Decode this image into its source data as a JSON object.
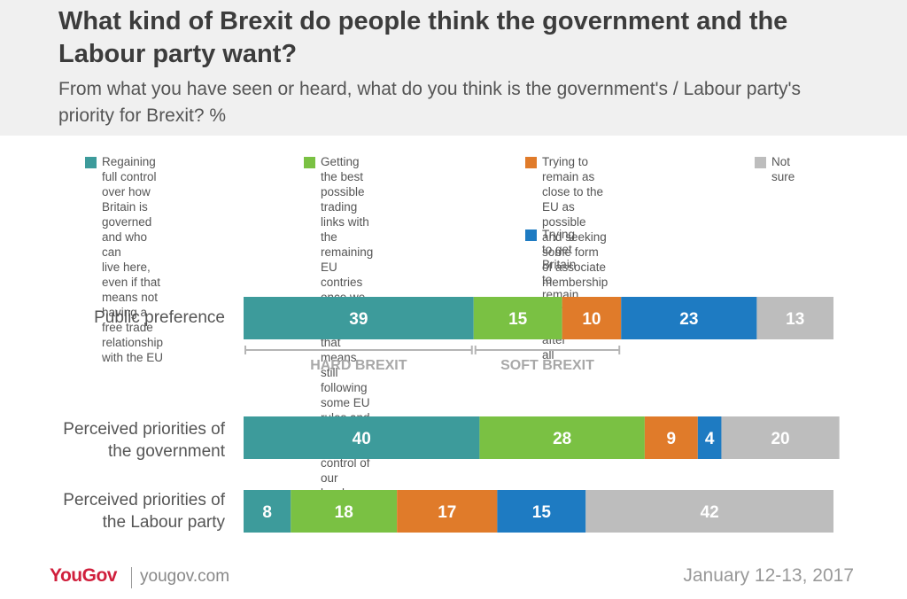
{
  "header": {
    "title": "What kind of Brexit do people think the government and the Labour party want?",
    "subtitle": "From what you have seen or heard, what do you think is the government's / Labour party's priority for Brexit? %"
  },
  "chart_data": {
    "type": "bar",
    "stacked": true,
    "orientation": "horizontal",
    "categories": [
      "Public preference",
      "Perceived priorities of\nthe government",
      "Perceived priorities of\nthe Labour party"
    ],
    "series": [
      {
        "name": "Regaining full control over how Britain is governed and who can live here, even if that means not having a free trade relationship with the EU",
        "color": "#3d9b9b",
        "values": [
          39,
          40,
          8
        ]
      },
      {
        "name": "Getting the best possible trading links with the remaining EU contries once we leave, even if that means still following some EU rules and giving up some control of our borders",
        "color": "#7ac143",
        "values": [
          15,
          28,
          18
        ]
      },
      {
        "name": "Trying to remain as close to the EU as possible and seeking some form of associate membership",
        "color": "#e07b2a",
        "values": [
          10,
          9,
          17
        ]
      },
      {
        "name": "Trying to get Britain to remain in the EU after all",
        "color": "#1e7bc2",
        "values": [
          23,
          4,
          15
        ]
      },
      {
        "name": "Not sure",
        "color": "#bdbdbd",
        "values": [
          13,
          20,
          42
        ]
      }
    ],
    "brackets": [
      {
        "label": "HARD BREXIT",
        "row": 0,
        "from_series": 0,
        "to_series": 0
      },
      {
        "label": "SOFT BREXIT",
        "row": 0,
        "from_series": 1,
        "to_series": 2
      }
    ],
    "legend_position": "top"
  },
  "legend": [
    {
      "label": "Regaining full control over how\nBritain is governed and who can\nlive here, even if that means not\nhaving a free trade relationship\nwith the EU",
      "color": "#3d9b9b"
    },
    {
      "label": "Getting the best possible\ntrading links with the remaining\nEU contries once we leave,\neven if that means still\nfollowing some EU rules and\ngiving up some control of our\nborders",
      "color": "#7ac143"
    },
    {
      "label": "Trying to remain as close to the\nEU as possible and seeking\nsome form of associate\nmembership",
      "color": "#e07b2a"
    },
    {
      "label": "Trying to get Britain to remain\nin the EU after all",
      "color": "#1e7bc2"
    },
    {
      "label": "Not sure",
      "color": "#bdbdbd"
    }
  ],
  "footer": {
    "logo": "YouGov",
    "url": "yougov.com",
    "date": "January 12-13, 2017"
  }
}
